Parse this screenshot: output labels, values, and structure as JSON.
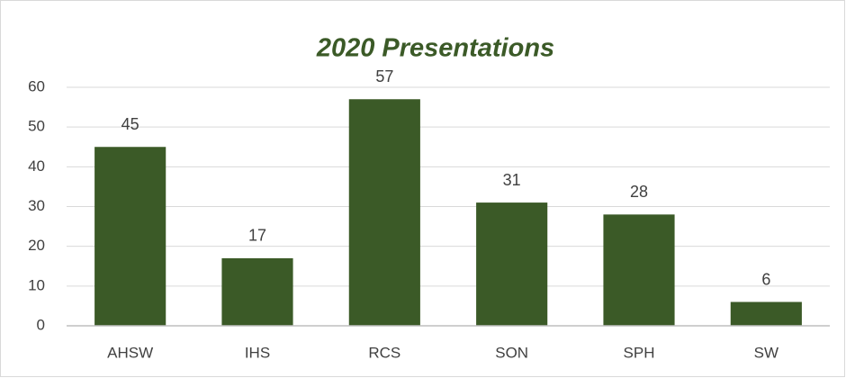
{
  "chart_data": {
    "type": "bar",
    "title": "2020 Presentations",
    "categories": [
      "AHSW",
      "IHS",
      "RCS",
      "SON",
      "SPH",
      "SW"
    ],
    "values": [
      45,
      17,
      57,
      31,
      28,
      6
    ],
    "color": "#3b5a27",
    "ylim": [
      0,
      60
    ],
    "yticks": [
      0,
      10,
      20,
      30,
      40,
      50,
      60
    ],
    "grid": true
  }
}
